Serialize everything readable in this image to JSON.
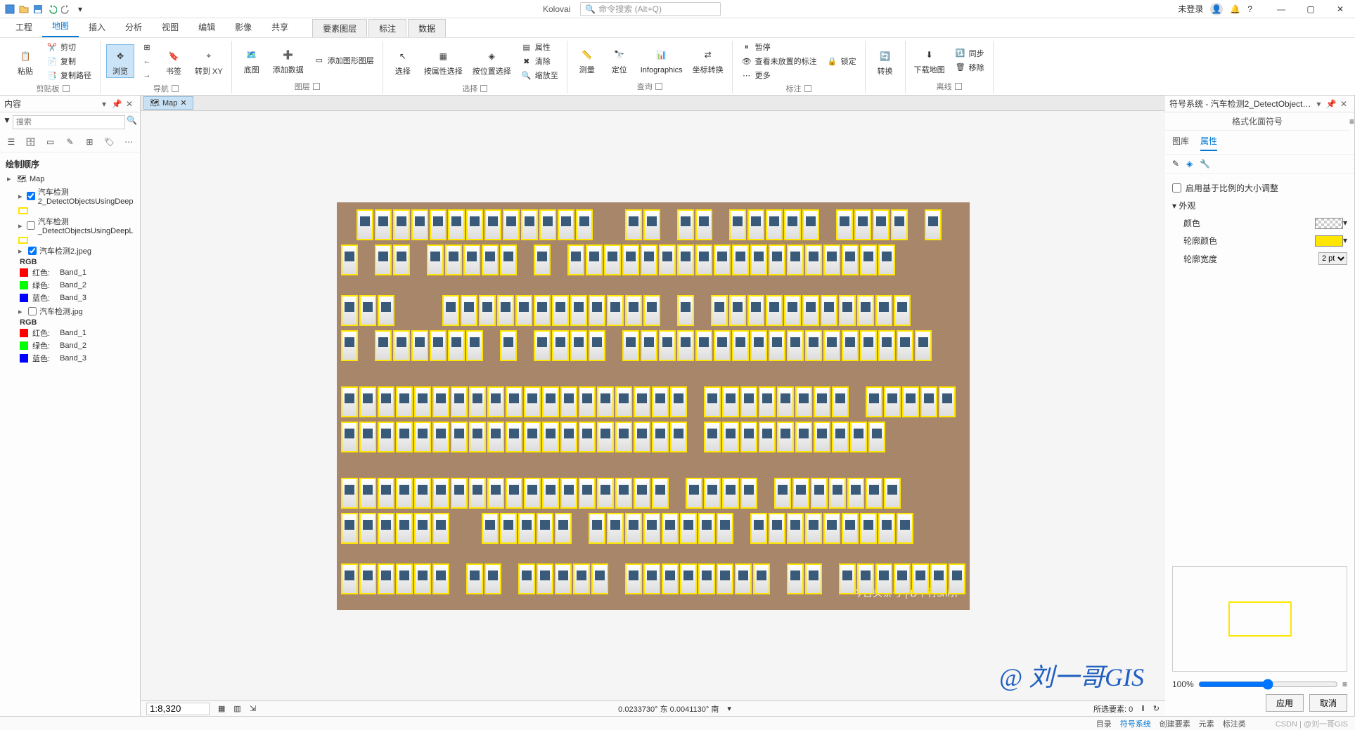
{
  "title_bar": {
    "project_name": "Kolovai",
    "search_placeholder": "命令搜索 (Alt+Q)",
    "login_text": "未登录"
  },
  "ribbon_tabs": {
    "tabs": [
      "工程",
      "地图",
      "插入",
      "分析",
      "视图",
      "编辑",
      "影像",
      "共享"
    ],
    "active_index": 1,
    "context_tabs": [
      "要素图层",
      "标注",
      "数据"
    ]
  },
  "ribbon": {
    "groups": {
      "clipboard": {
        "label": "剪贴板",
        "paste": "粘贴",
        "cut": "剪切",
        "copy": "复制",
        "copy_path": "复制路径"
      },
      "navigation": {
        "label": "导航",
        "browse": "浏览",
        "bookmark": "书签",
        "goto": "转到\nXY"
      },
      "layer": {
        "label": "图层",
        "basemap": "底图",
        "add_data": "添加数据",
        "add_graphics": "添加图形图层"
      },
      "selection": {
        "label": "选择",
        "select": "选择",
        "select_by_attr": "按属性选择",
        "select_by_loc": "按位置选择",
        "attributes": "属性",
        "clear": "清除",
        "zoom_to": "缩放至"
      },
      "query": {
        "label": "查询",
        "measure": "测量",
        "locate": "定位",
        "infographics": "Infographics",
        "coord_convert": "坐标转换"
      },
      "annotation": {
        "label": "标注",
        "pause": "暂停",
        "lock": "锁定",
        "view_unplaced": "查看未放置的标注",
        "more": "更多"
      },
      "convert": {
        "label": "",
        "convert": "转换"
      },
      "offline": {
        "label": "离线",
        "download": "下载地图",
        "sync": "同步",
        "remove": "移除"
      }
    }
  },
  "contents_pane": {
    "title": "内容",
    "search_placeholder": "搜索",
    "section_header": "绘制顺序",
    "map_node": "Map",
    "layers": [
      {
        "name": "汽车检测2_DetectObjectsUsingDeep",
        "checked": true,
        "swatch_border": "#ffe600",
        "swatch_fill": "transparent"
      },
      {
        "name": "汽车检测_DetectObjectsUsingDeepL",
        "checked": false,
        "swatch_border": "#ffe600",
        "swatch_fill": "transparent"
      },
      {
        "name": "汽车检测2.jpeg",
        "checked": true,
        "rgb": true
      },
      {
        "name": "汽车检测.jpg",
        "checked": false,
        "rgb": true
      }
    ],
    "rgb_label": "RGB",
    "bands": [
      {
        "color": "#ff0000",
        "label": "红色:",
        "value": "Band_1"
      },
      {
        "color": "#00ff00",
        "label": "绿色:",
        "value": "Band_2"
      },
      {
        "color": "#0000ff",
        "label": "蓝色:",
        "value": "Band_3"
      }
    ]
  },
  "map": {
    "tab_name": "Map",
    "scale": "1:8,320",
    "coords": "0.0233730° 东  0.0041130° 南",
    "selected_count_label": "所选要素: 0",
    "watermark": "今日头条号 | D平行shi界"
  },
  "symbology_pane": {
    "title": "符号系统 - 汽车检测2_DetectObjects...",
    "subtitle": "格式化面符号",
    "tabs": [
      "图库",
      "属性"
    ],
    "active_tab": 1,
    "scale_checkbox_label": "启用基于比例的大小调整",
    "appearance_group": "外观",
    "rows": {
      "color": {
        "label": "颜色",
        "value_type": "hatch"
      },
      "outline_color": {
        "label": "轮廓颜色",
        "value": "#ffe600"
      },
      "outline_width": {
        "label": "轮廓宽度",
        "value": "2 pt"
      }
    },
    "apply": "应用",
    "cancel": "取消"
  },
  "bottom_bar": {
    "items": [
      "目录",
      "符号系统",
      "创建要素",
      "元素",
      "标注类"
    ],
    "active_index": 1,
    "zoom": "100%",
    "credit": "CSDN | @刘一哥GIS"
  },
  "signature": "@ 刘一哥GIS",
  "styling": {
    "accent": "#0078d4",
    "detection_box_color": "#ffe600",
    "car_rows_y": [
      8,
      58,
      130,
      180,
      260,
      310,
      390,
      440,
      512
    ]
  }
}
